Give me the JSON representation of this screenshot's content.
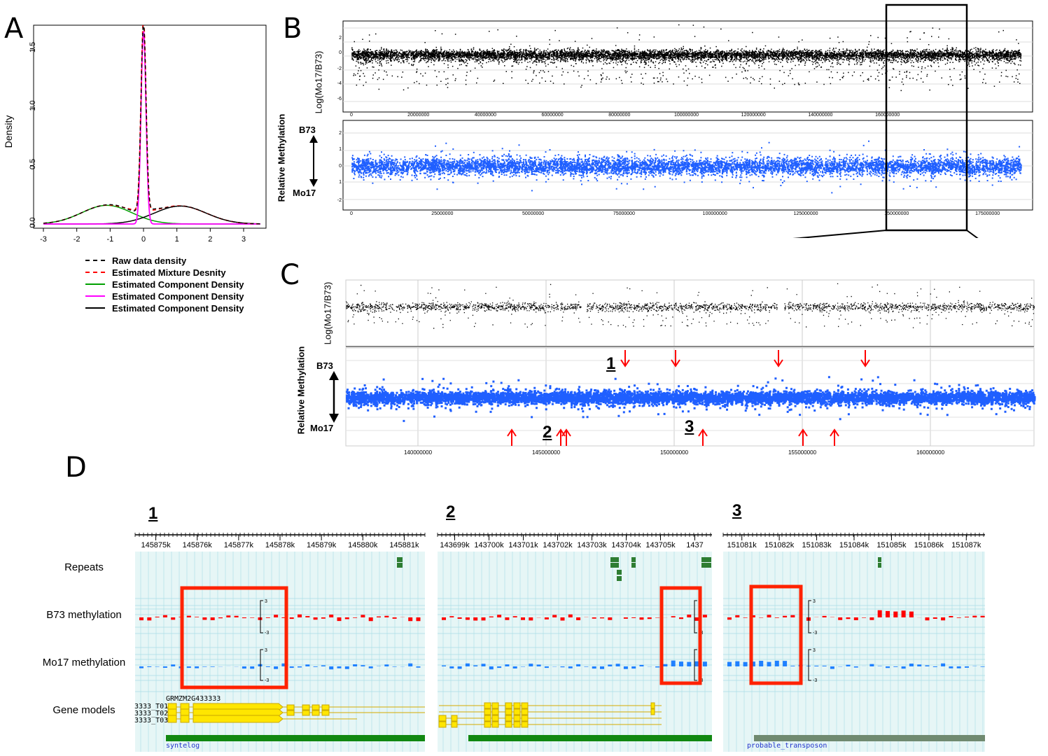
{
  "panels": {
    "a": "A",
    "b": "B",
    "c": "C",
    "d": "D"
  },
  "panel_a": {
    "ylabel": "Density",
    "yticks": [
      "0.0",
      "0.5",
      "1.0",
      "1.5"
    ],
    "xticks": [
      "-3",
      "-2",
      "-1",
      "0",
      "1",
      "2",
      "3"
    ],
    "legend": [
      {
        "label": "Raw data density",
        "color": "#000000",
        "style": "dashed"
      },
      {
        "label": "Estimated Mixture Desnity",
        "color": "#ff0000",
        "style": "dashed"
      },
      {
        "label": "Estimated Component Density",
        "color": "#00a000",
        "style": "solid"
      },
      {
        "label": "Estimated Component Density",
        "color": "#ff00ff",
        "style": "solid"
      },
      {
        "label": "Estimated Component Density",
        "color": "#000000",
        "style": "solid"
      }
    ]
  },
  "panel_b": {
    "top_ylabel": "Log(Mo17/B73)",
    "top_yticks": [
      "2",
      "0",
      "-2",
      "-4",
      "-6"
    ],
    "top_xticks": [
      "0",
      "20000000",
      "40000000",
      "60000000",
      "80000000",
      "100000000",
      "120000000",
      "140000000",
      "160000000"
    ],
    "bottom_ylabel": "Relative Methylation",
    "bottom_yticks": [
      "2",
      "1",
      "0",
      "1",
      "-2"
    ],
    "bottom_xticks": [
      "0",
      "25000000",
      "50000000",
      "75000000",
      "100000000",
      "125000000",
      "150000000",
      "175000000"
    ],
    "b73": "B73",
    "mo17": "Mo17"
  },
  "panel_c": {
    "top_ylabel": "Log(Mo17/B73)",
    "bottom_ylabel": "Relative Methylation",
    "b73": "B73",
    "mo17": "Mo17",
    "xticks": [
      "140000000",
      "145000000",
      "150000000",
      "155000000",
      "160000000"
    ],
    "markers": [
      "1",
      "2",
      "3"
    ]
  },
  "panel_d": {
    "track_labels": [
      "Repeats",
      "B73 methylation",
      "Mo17 methylation",
      "Gene models"
    ],
    "scale_top": "3",
    "scale_bottom": "-3",
    "subpanels": [
      {
        "num": "1",
        "ticks": [
          "145875k",
          "145876k",
          "145877k",
          "145878k",
          "145879k",
          "145880k",
          "145881k"
        ],
        "gene": "GRMZM2G433333",
        "transcripts": [
          "3333_T01",
          "3333_T02",
          "3333_T03"
        ],
        "feature": "syntelog",
        "feature_color": "#118811"
      },
      {
        "num": "2",
        "ticks": [
          "143699k",
          "143700k",
          "143701k",
          "143702k",
          "143703k",
          "143704k",
          "143705k",
          "1437"
        ],
        "feature": "syntelog",
        "feature_color": "#118811"
      },
      {
        "num": "3",
        "ticks": [
          "151081k",
          "151082k",
          "151083k",
          "151084k",
          "151085k",
          "151086k",
          "151087k"
        ],
        "feature": "probable_transposon",
        "feature_color": "#708a70"
      }
    ]
  },
  "colors": {
    "blue": "#1f5fff",
    "red": "#ff0000",
    "yellow": "#ffe600",
    "highlight": "#ff2200",
    "track_bg": "#e6f6f6"
  }
}
